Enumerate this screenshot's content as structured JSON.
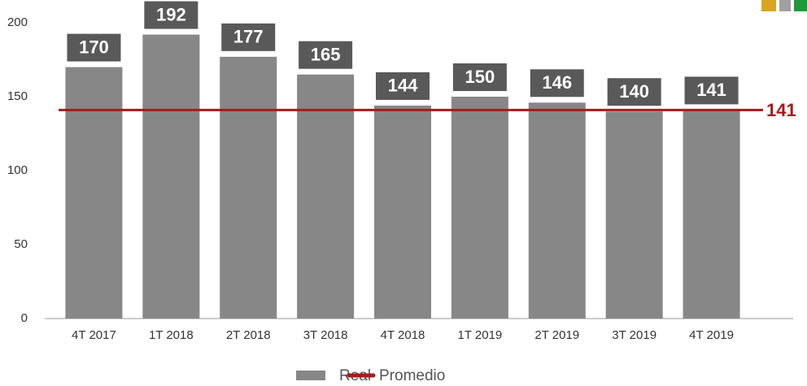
{
  "chart_data": {
    "type": "bar",
    "categories": [
      "4T 2017",
      "1T 2018",
      "2T 2018",
      "3T 2018",
      "4T 2018",
      "1T 2019",
      "2T 2019",
      "3T 2019",
      "4T 2019"
    ],
    "series": [
      {
        "name": "Real",
        "color": "#878787",
        "values": [
          170,
          192,
          177,
          165,
          144,
          150,
          146,
          140,
          141
        ]
      }
    ],
    "average": {
      "name": "Promedio",
      "color": "#a31c1c",
      "value": 141
    },
    "ylim": [
      0,
      200
    ],
    "yticks": [
      0,
      50,
      100,
      150,
      200
    ],
    "legend": "bottom"
  }
}
